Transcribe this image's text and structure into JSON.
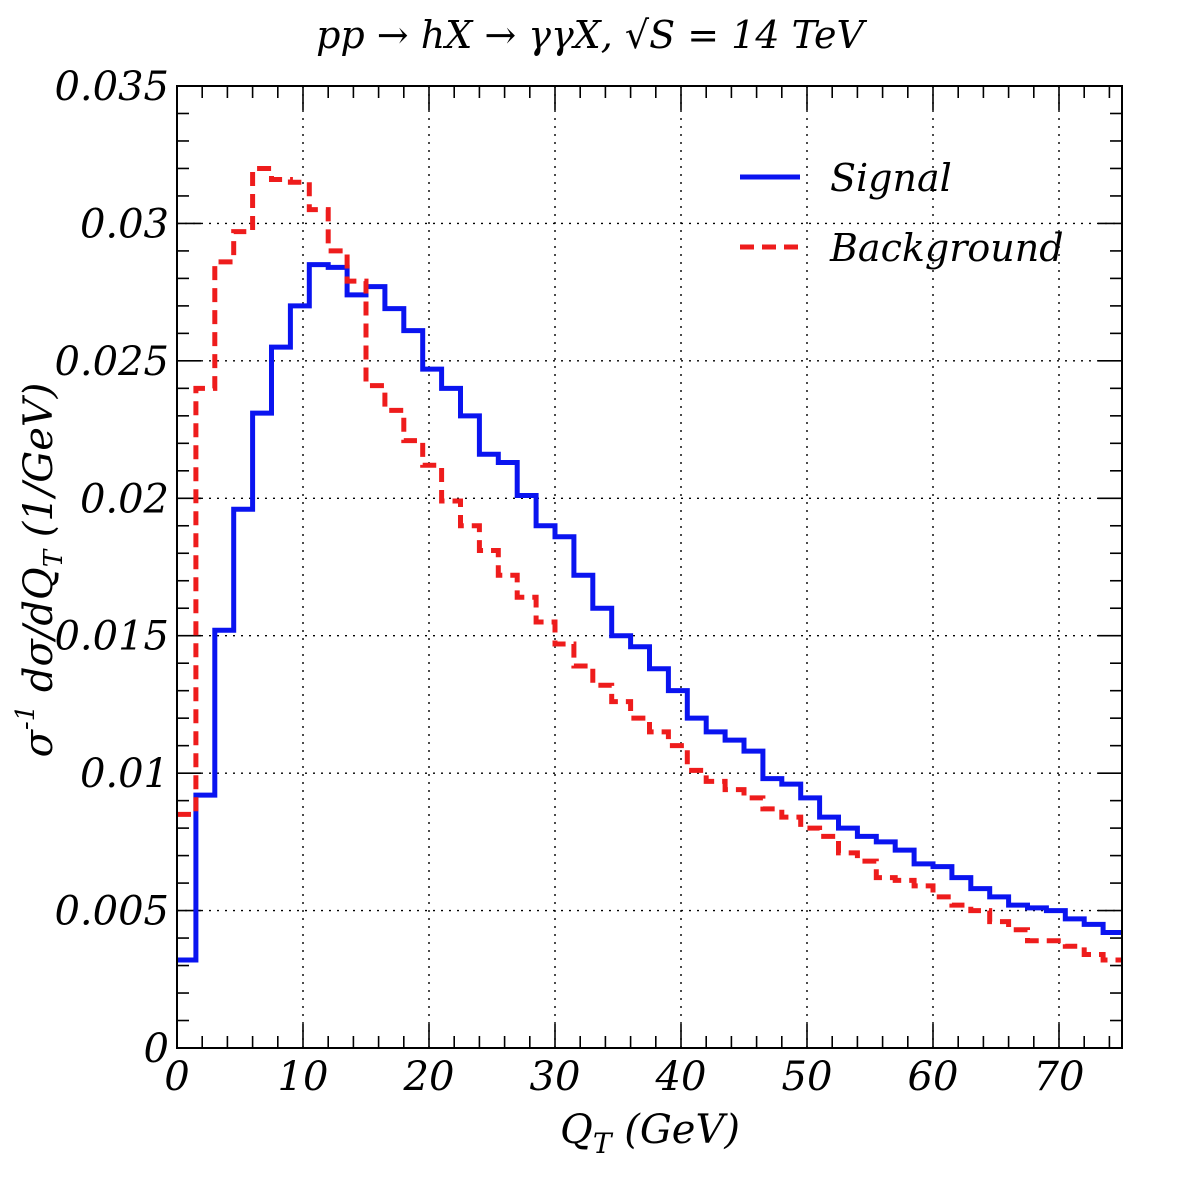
{
  "chart_data": {
    "type": "line",
    "step": true,
    "title_parts": {
      "process": "pp → hX → γγX, ",
      "sqrt": "√",
      "energy": "S = 14 TeV"
    },
    "xlabel": {
      "main": "Q",
      "sub": "T",
      "rest": " (GeV)"
    },
    "ylabel": {
      "a": "σ",
      "sup": "-1",
      "b": " dσ/dQ",
      "sub": "T",
      "c": " (1/GeV)"
    },
    "xlim": [
      0,
      75
    ],
    "ylim": [
      0,
      0.035
    ],
    "x_ticks": [
      0,
      10,
      20,
      30,
      40,
      50,
      60,
      70
    ],
    "x_tick_labels": [
      "0",
      "10",
      "20",
      "30",
      "40",
      "50",
      "60",
      "70"
    ],
    "y_ticks": [
      0,
      0.005,
      0.01,
      0.015,
      0.02,
      0.025,
      0.03,
      0.035
    ],
    "y_tick_labels": [
      "0",
      "0.005",
      "0.01",
      "0.015",
      "0.02",
      "0.025",
      "0.03",
      "0.035"
    ],
    "grid": true,
    "legend_position": "top-right",
    "bin_edges": [
      0,
      1.5,
      3,
      4.5,
      6,
      7.5,
      9,
      10.5,
      12,
      13.5,
      15,
      16.5,
      18,
      19.5,
      21,
      22.5,
      24,
      25.5,
      27,
      28.5,
      30,
      31.5,
      33,
      34.5,
      36,
      37.5,
      39,
      40.5,
      42,
      43.5,
      45,
      46.5,
      48,
      49.5,
      51,
      52.5,
      54,
      55.5,
      57,
      58.5,
      60,
      61.5,
      63,
      64.5,
      66,
      67.5,
      69,
      70.5,
      72,
      73.5,
      75
    ],
    "series": [
      {
        "name": "Signal",
        "color": "#0a14f0",
        "dash": "solid",
        "values": [
          0.0032,
          0.0092,
          0.0152,
          0.0196,
          0.0231,
          0.0255,
          0.027,
          0.0285,
          0.0284,
          0.0274,
          0.0277,
          0.0269,
          0.0261,
          0.0247,
          0.024,
          0.023,
          0.0216,
          0.0213,
          0.0201,
          0.019,
          0.0186,
          0.0172,
          0.016,
          0.015,
          0.0146,
          0.0138,
          0.013,
          0.012,
          0.0115,
          0.0112,
          0.0108,
          0.0098,
          0.0096,
          0.0091,
          0.0084,
          0.008,
          0.0077,
          0.0075,
          0.0072,
          0.0067,
          0.0066,
          0.0062,
          0.0058,
          0.0055,
          0.0052,
          0.0051,
          0.005,
          0.0047,
          0.0045,
          0.0042,
          0.0039
        ]
      },
      {
        "name": "Background",
        "color": "#ee1c1c",
        "dash": "dashed",
        "values": [
          0.0085,
          0.024,
          0.0286,
          0.0297,
          0.032,
          0.0316,
          0.0315,
          0.0305,
          0.029,
          0.0279,
          0.0241,
          0.0232,
          0.0221,
          0.0212,
          0.0199,
          0.019,
          0.0181,
          0.0172,
          0.0164,
          0.0155,
          0.0147,
          0.0139,
          0.0132,
          0.0126,
          0.012,
          0.0115,
          0.011,
          0.0101,
          0.0097,
          0.0094,
          0.0091,
          0.0087,
          0.0084,
          0.008,
          0.0077,
          0.0071,
          0.0068,
          0.0062,
          0.0061,
          0.0059,
          0.0055,
          0.0052,
          0.005,
          0.0046,
          0.0043,
          0.0039,
          0.0039,
          0.0037,
          0.0034,
          0.0032,
          0.003
        ]
      }
    ]
  }
}
